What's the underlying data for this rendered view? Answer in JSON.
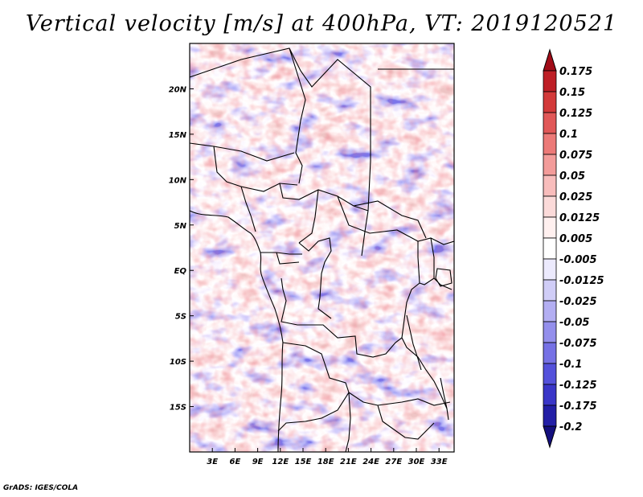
{
  "title": "Vertical velocity [m/s] at 400hPa, VT: 2019120521",
  "footer": "GrADS: IGES/COLA",
  "map": {
    "lon_range_deg": [
      0,
      35
    ],
    "lat_range_deg": [
      -20,
      25
    ],
    "x_ticks": [
      "3E",
      "6E",
      "9E",
      "12E",
      "15E",
      "18E",
      "21E",
      "24E",
      "27E",
      "30E",
      "33E"
    ],
    "y_ticks": [
      "20N",
      "15N",
      "10N",
      "5N",
      "EQ",
      "5S",
      "10S",
      "15S"
    ],
    "variable": "vertical velocity",
    "units": "m/s",
    "level": "400hPa",
    "valid_time": "2019120521"
  },
  "colorbar": {
    "labels": [
      "0.175",
      "0.15",
      "0.125",
      "0.1",
      "0.075",
      "0.05",
      "0.025",
      "0.0125",
      "0.005",
      "-0.005",
      "-0.0125",
      "-0.025",
      "-0.05",
      "-0.075",
      "-0.1",
      "-0.125",
      "-0.175",
      "-0.2"
    ],
    "colors": [
      "#a10c18",
      "#be1f26",
      "#d33a3a",
      "#e15858",
      "#ec7a78",
      "#f39c9a",
      "#f8bdbc",
      "#fbdad9",
      "#fff0ef",
      "#ffffff",
      "#eceafd",
      "#d0cdf7",
      "#b3aef2",
      "#948fec",
      "#7671e5",
      "#5451db",
      "#3a36c8",
      "#231fa6",
      "#140f7e"
    ]
  }
}
